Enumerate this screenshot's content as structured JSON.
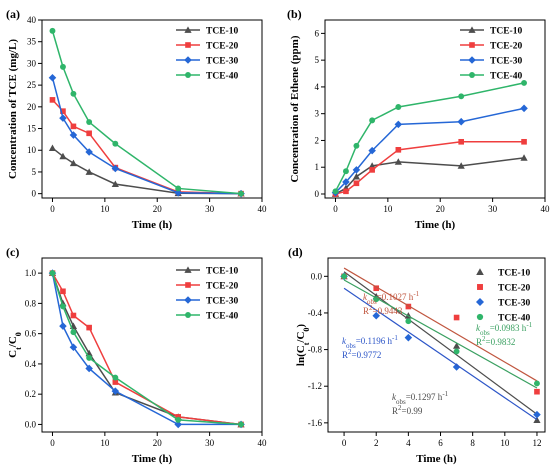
{
  "colors": {
    "TCE-10": "#4d4d4d",
    "TCE-20": "#ef3e3e",
    "TCE-30": "#2567d6",
    "TCE-40": "#2fb56a",
    "fit-10": "#4d4d4d",
    "fit-20": "#c0563f",
    "fit-30": "#2d56c8",
    "fit-40": "#3aa061"
  },
  "chart_data": [
    {
      "id": "a",
      "panel_label": "(a)",
      "type": "line",
      "xlabel": "Time (h)",
      "ylabel": "Concentration of TCE  (mg/L)",
      "xlim": [
        -2,
        40
      ],
      "ylim": [
        -1,
        40
      ],
      "xticks": [
        0,
        10,
        20,
        30,
        40
      ],
      "yticks": [
        0,
        5,
        10,
        15,
        20,
        25,
        30,
        35,
        40
      ],
      "x": [
        0,
        2,
        4,
        7,
        12,
        24,
        36
      ],
      "legend_position": "top-right",
      "series": [
        {
          "name": "TCE-10",
          "marker": "triangle",
          "values": [
            10.5,
            8.6,
            7.0,
            5.0,
            2.2,
            0.1,
            0.0
          ]
        },
        {
          "name": "TCE-20",
          "marker": "square",
          "values": [
            21.6,
            19.0,
            15.5,
            13.9,
            6.0,
            0.4,
            0.0
          ]
        },
        {
          "name": "TCE-30",
          "marker": "diamond",
          "values": [
            26.7,
            17.4,
            13.5,
            9.6,
            5.8,
            0.2,
            0.0
          ]
        },
        {
          "name": "TCE-40",
          "marker": "circle",
          "values": [
            37.5,
            29.2,
            23.0,
            16.5,
            11.5,
            1.2,
            0.0
          ]
        }
      ]
    },
    {
      "id": "b",
      "panel_label": "(b)",
      "type": "line",
      "xlabel": "Time (h)",
      "ylabel": "Concentration of Ethene (ppm)",
      "xlim": [
        -2,
        40
      ],
      "ylim": [
        -0.15,
        6.5
      ],
      "xticks": [
        0,
        10,
        20,
        30,
        40
      ],
      "yticks": [
        0,
        1,
        2,
        3,
        4,
        5,
        6
      ],
      "x": [
        0,
        2,
        4,
        7,
        12,
        24,
        36
      ],
      "legend_position": "top-right",
      "series": [
        {
          "name": "TCE-10",
          "marker": "triangle",
          "values": [
            0.0,
            0.22,
            0.65,
            1.05,
            1.2,
            1.05,
            1.35
          ]
        },
        {
          "name": "TCE-20",
          "marker": "square",
          "values": [
            0.0,
            0.1,
            0.4,
            0.9,
            1.65,
            1.95,
            1.95
          ]
        },
        {
          "name": "TCE-30",
          "marker": "diamond",
          "values": [
            0.05,
            0.45,
            0.9,
            1.62,
            2.6,
            2.7,
            3.2
          ]
        },
        {
          "name": "TCE-40",
          "marker": "circle",
          "values": [
            0.1,
            0.85,
            1.8,
            2.75,
            3.25,
            3.65,
            4.15
          ]
        }
      ]
    },
    {
      "id": "c",
      "panel_label": "(c)",
      "type": "line",
      "xlabel": "Time (h)",
      "ylabel": "Ct/C0",
      "xlim": [
        -2,
        40
      ],
      "ylim": [
        -0.05,
        1.1
      ],
      "xticks": [
        0,
        10,
        20,
        30,
        40
      ],
      "yticks": [
        0.0,
        0.2,
        0.4,
        0.6,
        0.8,
        1.0
      ],
      "x": [
        0,
        2,
        4,
        7,
        12,
        24,
        36
      ],
      "legend_position": "top-right",
      "series": [
        {
          "name": "TCE-10",
          "marker": "triangle",
          "values": [
            1.0,
            0.8,
            0.65,
            0.47,
            0.21,
            0.05,
            0.0
          ]
        },
        {
          "name": "TCE-20",
          "marker": "square",
          "values": [
            1.0,
            0.88,
            0.72,
            0.64,
            0.28,
            0.05,
            0.0
          ]
        },
        {
          "name": "TCE-30",
          "marker": "diamond",
          "values": [
            1.0,
            0.65,
            0.51,
            0.37,
            0.22,
            0.0,
            0.0
          ]
        },
        {
          "name": "TCE-40",
          "marker": "circle",
          "values": [
            1.0,
            0.78,
            0.61,
            0.44,
            0.31,
            0.03,
            0.0
          ]
        }
      ]
    },
    {
      "id": "d",
      "panel_label": "(d)",
      "type": "scatter",
      "xlabel": "Time (h)",
      "ylabel": "ln(Ct/C0)",
      "xlim": [
        -1,
        12.5
      ],
      "ylim": [
        -1.7,
        0.2
      ],
      "xticks": [
        0,
        2,
        4,
        6,
        8,
        10,
        12
      ],
      "yticks": [
        0.0,
        -0.4,
        -0.8,
        -1.2,
        -1.6
      ],
      "x": [
        0,
        2,
        4,
        7,
        12
      ],
      "legend_position": "top-right",
      "series": [
        {
          "name": "TCE-10",
          "marker": "triangle",
          "values": [
            0.0,
            -0.22,
            -0.43,
            -0.76,
            -1.57
          ],
          "fit": {
            "slope": -0.1297,
            "intercept": 0.05
          }
        },
        {
          "name": "TCE-20",
          "marker": "square",
          "values": [
            0.0,
            -0.13,
            -0.33,
            -0.45,
            -1.26
          ],
          "fit": {
            "slope": -0.1027,
            "intercept": 0.09
          }
        },
        {
          "name": "TCE-30",
          "marker": "diamond",
          "values": [
            0.0,
            -0.43,
            -0.67,
            -0.99,
            -1.51
          ],
          "fit": {
            "slope": -0.1196,
            "intercept": -0.13
          }
        },
        {
          "name": "TCE-40",
          "marker": "circle",
          "values": [
            0.0,
            -0.25,
            -0.49,
            -0.82,
            -1.17
          ],
          "fit": {
            "slope": -0.0983,
            "intercept": -0.04
          }
        }
      ],
      "annotations": [
        {
          "series": "TCE-20",
          "k": "0.1027 h",
          "r2": "0.9443"
        },
        {
          "series": "TCE-30",
          "k": "0.1196 h",
          "r2": "0.9772"
        },
        {
          "series": "TCE-40",
          "k": "0.0983 h",
          "r2": "0.9832"
        },
        {
          "series": "TCE-10",
          "k": "0.1297 h",
          "r2": "0.99"
        }
      ]
    }
  ]
}
